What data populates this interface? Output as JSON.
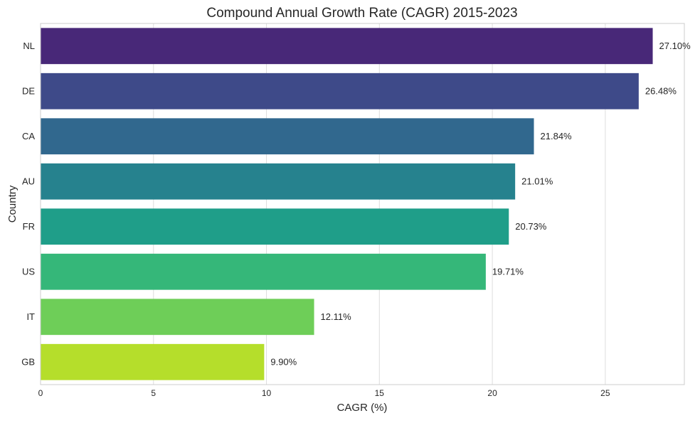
{
  "chart_data": {
    "type": "bar",
    "orientation": "horizontal",
    "title": "Compound Annual Growth Rate (CAGR) 2015-2023",
    "xlabel": "CAGR (%)",
    "ylabel": "Country",
    "categories": [
      "NL",
      "DE",
      "CA",
      "AU",
      "FR",
      "US",
      "IT",
      "GB"
    ],
    "values": [
      27.1,
      26.48,
      21.84,
      21.01,
      20.73,
      19.71,
      12.11,
      9.9
    ],
    "data_labels": [
      "27.10%",
      "26.48%",
      "21.84%",
      "21.01%",
      "20.73%",
      "19.71%",
      "12.11%",
      "9.90%"
    ],
    "xlim": [
      0,
      28.5
    ],
    "xticks": [
      0,
      5,
      10,
      15,
      20,
      25
    ],
    "xtick_labels": [
      "0",
      "5",
      "10",
      "15",
      "20",
      "25"
    ],
    "grid": true,
    "colors": [
      "#482878",
      "#3e4a89",
      "#31688e",
      "#26828e",
      "#1f9e89",
      "#35b779",
      "#6ece58",
      "#b5de2b"
    ]
  }
}
